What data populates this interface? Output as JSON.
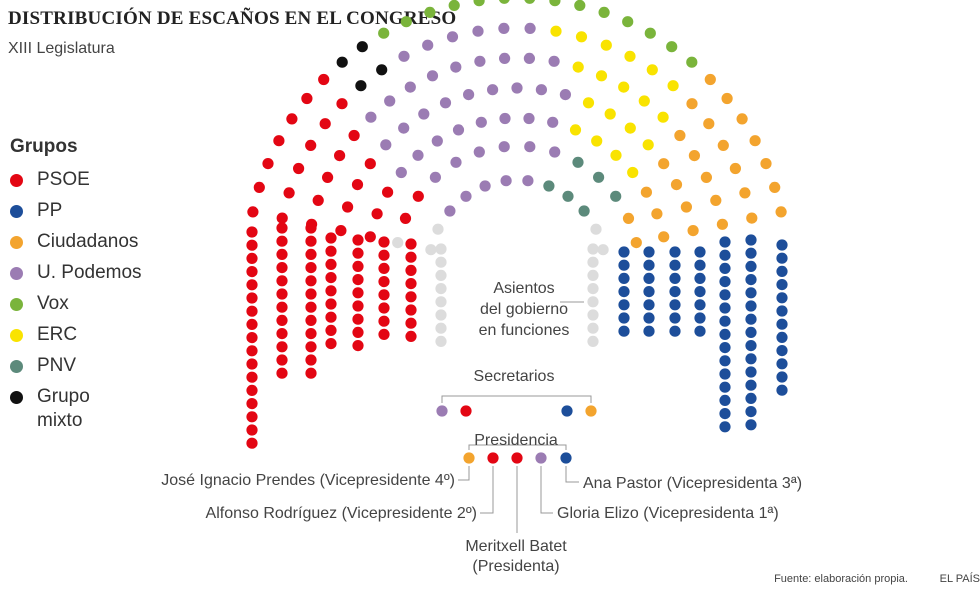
{
  "header": {
    "title": "DISTRIBUCIÓN DE ESCAÑOS EN EL CONGRESO",
    "subtitle": "XIII Legislatura"
  },
  "legend": {
    "title": "Grupos",
    "items": [
      {
        "label": "PSOE",
        "color": "#e30613"
      },
      {
        "label": "PP",
        "color": "#1d4e9a"
      },
      {
        "label": "Ciudadanos",
        "color": "#f3a42e"
      },
      {
        "label": "U. Podemos",
        "color": "#9b7cb3"
      },
      {
        "label": "Vox",
        "color": "#7ab43b"
      },
      {
        "label": "ERC",
        "color": "#f9e300"
      },
      {
        "label": "PNV",
        "color": "#5c8a7b"
      },
      {
        "label": "Grupo\nmixto",
        "color": "#111111"
      }
    ]
  },
  "colors": {
    "government": "#dcdcdc",
    "leader_line": "#999999"
  },
  "labels": {
    "government": [
      "Asientos",
      "del gobierno",
      "en funciones"
    ],
    "secretaries": "Secretarios",
    "presidency": "Presidencia",
    "vp4": "José Ignacio Prendes (Vicepresidente 4º)",
    "vp2": "Alfonso Rodríguez (Vicepresidente 2º)",
    "president": [
      "Meritxell Batet",
      "(Presidenta)"
    ],
    "vp1": "Gloria Elizo (Vicepresidenta 1ª)",
    "vp3": "Ana Pastor (Vicepresidenta 3ª)"
  },
  "footer": {
    "source": "Fuente: elaboración propia.",
    "brand": "EL PAÍS"
  }
}
